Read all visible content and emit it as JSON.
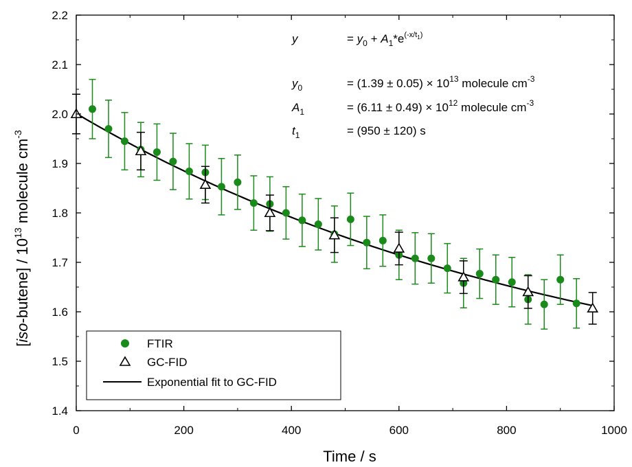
{
  "chart_data": {
    "type": "scatter",
    "xlabel": "Time / s",
    "ylabel": {
      "pre": "[",
      "italic": "iso",
      "mid": "-butene] / 10",
      "sup": "13",
      "post": " molecule cm",
      "sup2": "-3"
    },
    "xlim": [
      0,
      1000
    ],
    "ylim": [
      1.4,
      2.2
    ],
    "x_ticks": [
      0,
      200,
      400,
      600,
      800,
      1000
    ],
    "y_ticks": [
      1.4,
      1.5,
      1.6,
      1.7,
      1.8,
      1.9,
      2.0,
      2.1,
      2.2
    ],
    "x_tick_labels": [
      "0",
      "200",
      "400",
      "600",
      "800",
      "1000"
    ],
    "y_tick_labels": [
      "1.4",
      "1.5",
      "1.6",
      "1.7",
      "1.8",
      "1.9",
      "2.0",
      "2.1",
      "2.2"
    ],
    "legend_position": "bottom-left",
    "series": [
      {
        "name": "FTIR",
        "marker": "filled-circle",
        "color": "#1a8a1a",
        "x": [
          30,
          60,
          90,
          120,
          150,
          180,
          210,
          240,
          270,
          300,
          330,
          360,
          390,
          420,
          450,
          480,
          510,
          540,
          570,
          600,
          630,
          660,
          690,
          720,
          750,
          780,
          810,
          840,
          870,
          900,
          930
        ],
        "y": [
          2.01,
          1.97,
          1.945,
          1.928,
          1.923,
          1.904,
          1.884,
          1.882,
          1.853,
          1.862,
          1.82,
          1.818,
          1.8,
          1.785,
          1.777,
          1.757,
          1.787,
          1.74,
          1.744,
          1.715,
          1.708,
          1.708,
          1.688,
          1.658,
          1.677,
          1.665,
          1.66,
          1.625,
          1.615,
          1.665,
          1.617
        ],
        "err": [
          0.06,
          0.058,
          0.058,
          0.055,
          0.057,
          0.057,
          0.056,
          0.055,
          0.057,
          0.055,
          0.055,
          0.055,
          0.053,
          0.053,
          0.052,
          0.057,
          0.053,
          0.053,
          0.052,
          0.05,
          0.052,
          0.05,
          0.05,
          0.05,
          0.05,
          0.05,
          0.05,
          0.05,
          0.05,
          0.05,
          0.05
        ]
      },
      {
        "name": "GC-FID",
        "marker": "open-triangle",
        "color": "#000000",
        "x": [
          0,
          120,
          240,
          360,
          480,
          600,
          720,
          840,
          960
        ],
        "y": [
          2.0,
          1.925,
          1.857,
          1.8,
          1.755,
          1.728,
          1.67,
          1.64,
          1.607
        ],
        "err": [
          0.04,
          0.038,
          0.037,
          0.036,
          0.035,
          0.033,
          0.033,
          0.033,
          0.032
        ]
      },
      {
        "name": "Exponential fit to GC-FID",
        "type": "line",
        "color": "#000000",
        "model": "y = y0 + A1*exp(-x/t1)",
        "params": {
          "y0": 1.39,
          "A1": 0.611,
          "t1": 950
        },
        "x_range": [
          0,
          960
        ]
      }
    ],
    "annotation": {
      "rows": [
        {
          "sym": "y",
          "sub": "",
          "val": "= y0 + A1*e(-x/t1)"
        },
        {
          "sym": "y",
          "sub": "0",
          "val": "= (1.39 ± 0.05) × 10",
          "sup": "13",
          "tail": " molecule cm",
          "sup2": "-3"
        },
        {
          "sym": "A",
          "sub": "1",
          "val": "= (6.11 ± 0.49) × 10",
          "sup": "12",
          "tail": " molecule cm",
          "sup2": "-3"
        },
        {
          "sym": "t",
          "sub": "1",
          "val": "= (950 ± 120) s"
        }
      ],
      "eq_parts": {
        "eq": "= ",
        "y": "y",
        "sub0": "0",
        "plus": " + ",
        "A": "A",
        "sub1": "1",
        "exp": "*e",
        "exp_sup": "(-x/t",
        "exp_sup_sub": "1",
        "exp_sup_end": ")"
      }
    }
  }
}
